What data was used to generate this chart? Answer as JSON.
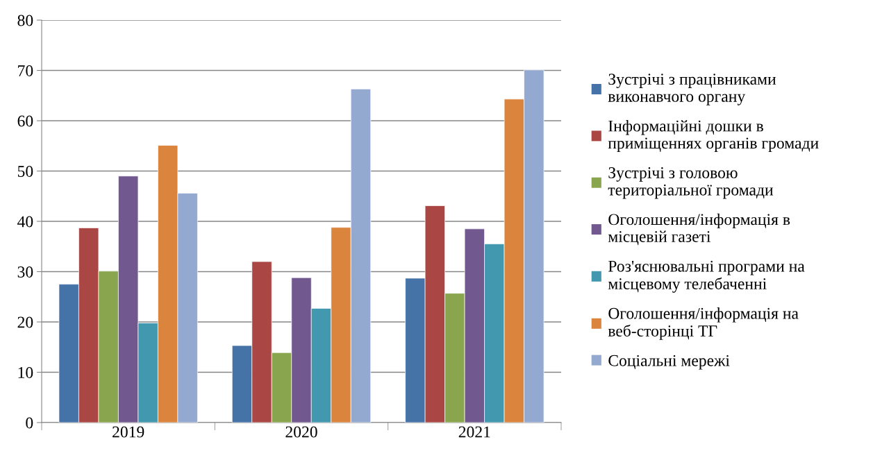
{
  "chart_data": {
    "type": "bar",
    "categories": [
      "2019",
      "2020",
      "2021"
    ],
    "ylim": [
      0,
      80
    ],
    "yticks": [
      0,
      10,
      20,
      30,
      40,
      50,
      60,
      70,
      80
    ],
    "grid": "y",
    "legend": "right",
    "series": [
      {
        "name": "Зустрічі з працівниками виконавчого органу",
        "color": "#4572a7",
        "values": [
          27.5,
          15.3,
          28.7
        ]
      },
      {
        "name": "Інформаційні дошки в приміщеннях органів громади",
        "color": "#aa4643",
        "values": [
          38.7,
          32.0,
          43.1
        ]
      },
      {
        "name": "Зустрічі з головою територіальної громади",
        "color": "#89a54e",
        "values": [
          30.1,
          13.9,
          25.7
        ]
      },
      {
        "name": "Оголошення/інформація в місцевій газеті",
        "color": "#71588f",
        "values": [
          49.0,
          28.8,
          38.5
        ]
      },
      {
        "name": "Роз'яснювальні програми на місцевому телебаченні",
        "color": "#4198af",
        "values": [
          19.8,
          22.7,
          35.5
        ]
      },
      {
        "name": "Оголошення/інформація на веб-сторінці ТГ",
        "color": "#db843d",
        "values": [
          55.1,
          38.8,
          64.3
        ]
      },
      {
        "name": "Соціальні мережі",
        "color": "#93a9cf",
        "values": [
          45.6,
          66.3,
          70.1
        ]
      }
    ]
  }
}
